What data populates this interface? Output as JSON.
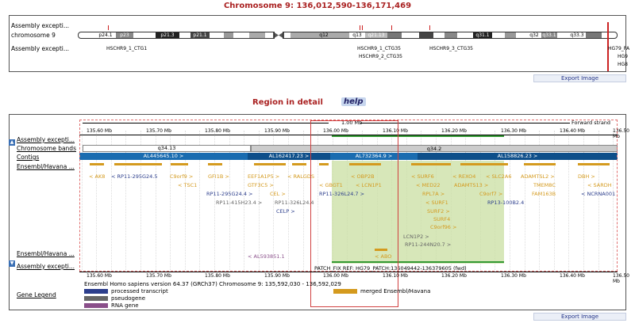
{
  "chromosome_title": "Chromosome 9: 136,012,590-136,171,469",
  "region_title": "Region in detail",
  "help": "help",
  "export_label": "Export Image",
  "top_panel": {
    "labels": [
      "Assembly excepti...",
      "chromosome 9",
      "Assembly excepti..."
    ],
    "bands": [
      "p24.1",
      "p23",
      "p21.3",
      "p21.1",
      "q12",
      "q13",
      "q21.13",
      "q31.1",
      "q32",
      "q33.1",
      "q33.3"
    ],
    "patches": [
      "HSCHR9_1_CTG1",
      "HSCHR9_1_CTG35",
      "HSCHR9_2_CTG35",
      "HSCHR9_3_CTG35",
      "HG79_PA",
      "HG9",
      "HG8"
    ]
  },
  "detail": {
    "track_labels": [
      "Assembly excepti...",
      "Chromosome bands",
      "Contigs",
      "Ensembl/Havana ...",
      "Ensembl/Havana ...",
      "Assembly excepti..."
    ],
    "ruler": [
      "135.60 Mb",
      "135.70 Mb",
      "135.80 Mb",
      "135.90 Mb",
      "136.00 Mb",
      "136.10 Mb",
      "136.20 Mb",
      "136.30 Mb",
      "136.40 Mb",
      "136.50 Mb"
    ],
    "scale_label": "1.00 Mb",
    "strand_label": "Forward strand",
    "bands": [
      "q34.13",
      "q34.2"
    ],
    "contigs": [
      "AL445645.10 >",
      "AL162417.23 >",
      "AL732364.9 >",
      "AL158826.23 >"
    ],
    "genes_row1": [
      "< AK8",
      "< RP11-295G24.5",
      "C9orf9 >",
      "GFI1B >",
      "EEF1A1P5 >",
      "< RALGDS",
      "< OBP2B",
      "< SURF6",
      "< REXO4",
      "< SLC2A6",
      "ADAMTSL2 >",
      "DBH >"
    ],
    "genes_row2": [
      "< TSC1",
      "GTF3C5 >",
      "< GBGT1",
      "< LCN1P1",
      "< MED22",
      "ADAMTS13 >",
      "TMEM8C",
      "< SARDH"
    ],
    "genes_row3": [
      "RP11-295G24.4 >",
      "CEL >",
      "RP11-326L24.7 >",
      "RPL7A >",
      "C9orf7 >",
      "FAM163B",
      "< NCRNA001"
    ],
    "genes_row4": [
      "RP11-415H23.4 >",
      "RP11-326L24.4",
      "< SURF1",
      "RP13-100B2.4"
    ],
    "genes_row5": [
      "CELP >",
      "SURF2 >"
    ],
    "genes_row6": [
      "SURF4",
      "C9orf96 >"
    ],
    "genes_row7": [
      "LCN1P2 >",
      "RP11-244N20.7 >"
    ],
    "genes_row8": [
      "< AL593851.1",
      "< ABO"
    ],
    "patch_fix": "PATCH_FIX REF: HG79_PATCH:136049442-136379605 (fwd)",
    "footer": "Ensembl Homo sapiens version 64.37 (GRCh37) Chromosome 9: 135,592,030 - 136,592,029",
    "legend_title": "Gene Legend",
    "legend": [
      {
        "label": "processed transcript",
        "color": "#2c3e8c"
      },
      {
        "label": "pseudogene",
        "color": "#666666"
      },
      {
        "label": "RNA gene",
        "color": "#8a4f8a"
      },
      {
        "label": "merged Ensembl/Havana",
        "color": "#d4a017"
      }
    ]
  },
  "colors": {
    "merged": "#d49a1e",
    "coding": "#2c3e8c",
    "pseudo": "#666666",
    "rna": "#8a4f8a",
    "contig_a": "#1a6cb0",
    "contig_b": "#0e4f8a",
    "highlight": "#c9dfa2",
    "title": "#aa2222"
  }
}
